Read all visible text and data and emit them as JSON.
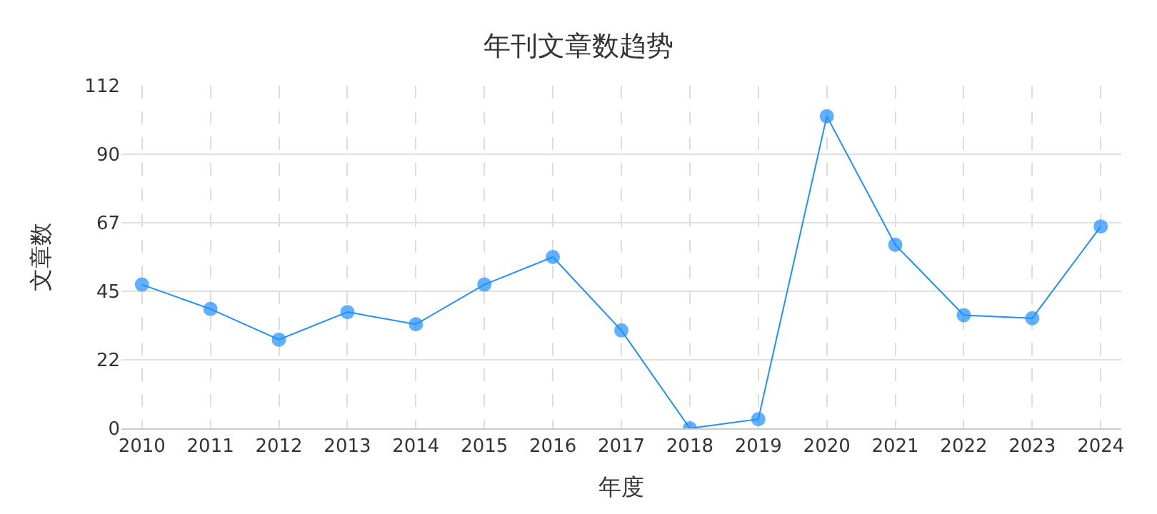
{
  "chart_data": {
    "type": "line",
    "title": "年刊文章数趋势",
    "xlabel": "年度",
    "ylabel": "文章数",
    "categories": [
      "2010",
      "2011",
      "2012",
      "2013",
      "2014",
      "2015",
      "2016",
      "2017",
      "2018",
      "2019",
      "2020",
      "2021",
      "2022",
      "2023",
      "2024"
    ],
    "series": [
      {
        "color": "#1e90ff",
        "values": [
          47,
          39,
          29,
          38,
          34,
          47,
          56,
          32,
          0,
          3,
          102,
          60,
          37,
          36,
          66
        ]
      }
    ],
    "ylim": [
      0,
      112
    ],
    "yticks": [
      0,
      {
        "value": 22.4,
        "label": "22"
      },
      {
        "value": 44.8,
        "label": "45"
      },
      {
        "value": 67.2,
        "label": "67"
      },
      {
        "value": 89.6,
        "label": "90"
      },
      112
    ],
    "grid": true,
    "legend": false,
    "marker": "circle",
    "line_style": "solid"
  }
}
